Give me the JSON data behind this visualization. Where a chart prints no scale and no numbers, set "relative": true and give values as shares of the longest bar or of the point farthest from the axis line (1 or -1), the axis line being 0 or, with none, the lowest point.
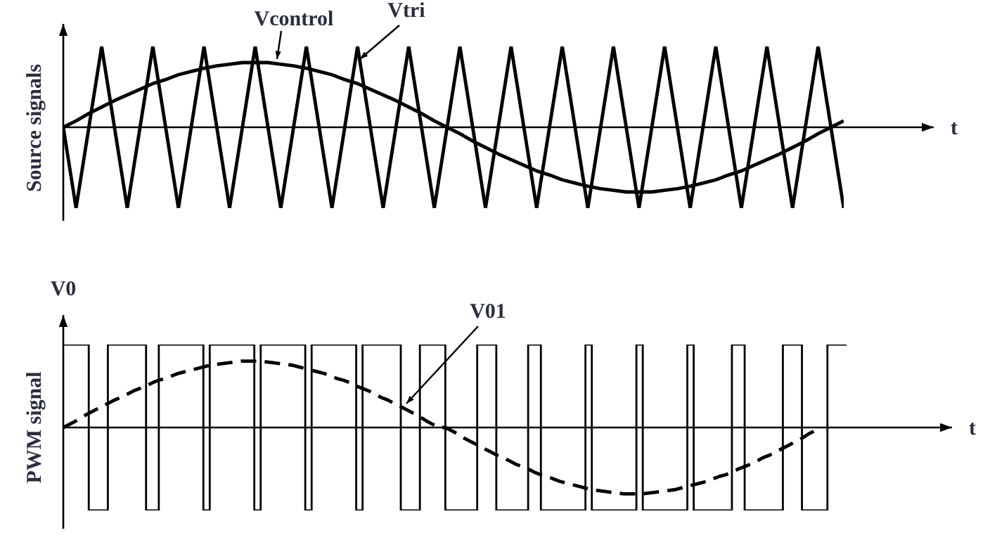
{
  "chart_data": [
    {
      "type": "line",
      "ylabel": "Source signals",
      "xlabel": "t",
      "relative": true,
      "categories": [
        null,
        null,
        null,
        null,
        null,
        null,
        null,
        null,
        null,
        null,
        null,
        null,
        null,
        null,
        null,
        null,
        null,
        null,
        null,
        null,
        null,
        null,
        null,
        null,
        null,
        null,
        null,
        null,
        null,
        null,
        null,
        null,
        null,
        null,
        null,
        null,
        null,
        null,
        null,
        null,
        null,
        null,
        null,
        null,
        null,
        null,
        null,
        null,
        null,
        null,
        null,
        null,
        null,
        null,
        null,
        null,
        null,
        null,
        null,
        null,
        null,
        null
      ],
      "series": [
        {
          "name": "Vtri",
          "color": "#000000",
          "values": [
            0,
            -1,
            0,
            1,
            0,
            -1,
            0,
            1,
            0,
            -1,
            0,
            1,
            0,
            -1,
            0,
            1,
            0,
            -1,
            0,
            1,
            0,
            -1,
            0,
            1,
            0,
            -1,
            0,
            1,
            0,
            -1,
            0,
            1,
            0,
            -1,
            0,
            1,
            0,
            -1,
            0,
            1,
            0,
            -1,
            0,
            1,
            0,
            -1,
            0,
            1,
            0,
            -1,
            0,
            1,
            0,
            -1,
            0,
            1,
            0,
            -1,
            0,
            1,
            0,
            -1
          ]
        },
        {
          "name": "Vcontrol",
          "color": "#000000",
          "values": [
            0,
            0.08,
            0.17,
            0.25,
            0.33,
            0.4,
            0.47,
            0.54,
            0.59,
            0.65,
            0.69,
            0.73,
            0.76,
            0.78,
            0.8,
            0.8,
            0.8,
            0.78,
            0.76,
            0.73,
            0.69,
            0.65,
            0.59,
            0.54,
            0.47,
            0.4,
            0.33,
            0.25,
            0.17,
            0.08,
            0,
            -0.08,
            -0.17,
            -0.25,
            -0.33,
            -0.4,
            -0.47,
            -0.54,
            -0.59,
            -0.65,
            -0.69,
            -0.73,
            -0.76,
            -0.78,
            -0.8,
            -0.8,
            -0.8,
            -0.78,
            -0.76,
            -0.73,
            -0.69,
            -0.65,
            -0.59,
            -0.54,
            -0.47,
            -0.4,
            -0.33,
            -0.25,
            -0.17,
            -0.08,
            0,
            0.08
          ]
        }
      ]
    },
    {
      "type": "line",
      "ylabel": "PWM signal",
      "xlabel": "t",
      "annotations": [
        "V0"
      ],
      "relative": true,
      "categories": [
        null,
        null,
        null,
        null,
        null,
        null,
        null,
        null,
        null,
        null,
        null,
        null,
        null,
        null,
        null,
        null,
        null,
        null,
        null,
        null,
        null,
        null,
        null,
        null,
        null,
        null,
        null,
        null,
        null,
        null,
        null,
        null,
        null,
        null,
        null,
        null,
        null,
        null,
        null,
        null,
        null,
        null,
        null,
        null,
        null,
        null,
        null,
        null,
        null,
        null,
        null,
        null,
        null,
        null,
        null,
        null,
        null,
        null,
        null,
        null,
        null,
        null,
        null,
        null,
        null,
        null,
        null,
        null,
        null,
        null,
        null,
        null,
        null,
        null,
        null,
        null,
        null,
        null,
        null,
        null,
        null,
        null,
        null,
        null,
        null,
        null,
        null,
        null,
        null,
        null,
        null,
        null,
        null,
        null,
        null,
        null,
        null,
        null,
        null,
        null,
        null,
        null,
        null,
        null,
        null,
        null,
        null,
        null,
        null,
        null,
        null,
        null,
        null,
        null,
        null,
        null,
        null,
        null,
        null,
        null,
        null,
        null,
        null,
        null
      ],
      "series": [
        {
          "type": "step",
          "color": "#000000",
          "values": [
            1,
            1,
            1,
            1,
            -1,
            -1,
            -1,
            1,
            1,
            1,
            1,
            1,
            1,
            -1,
            -1,
            1,
            1,
            1,
            1,
            1,
            1,
            1,
            -1,
            1,
            1,
            1,
            1,
            1,
            1,
            1,
            -1,
            1,
            1,
            1,
            1,
            1,
            1,
            1,
            -1,
            1,
            1,
            1,
            1,
            1,
            1,
            1,
            -1,
            1,
            1,
            1,
            1,
            1,
            1,
            -1,
            -1,
            -1,
            1,
            1,
            1,
            1,
            -1,
            -1,
            -1,
            -1,
            -1,
            1,
            1,
            1,
            -1,
            -1,
            -1,
            -1,
            -1,
            1,
            1,
            -1,
            -1,
            -1,
            -1,
            -1,
            -1,
            -1,
            1,
            -1,
            -1,
            -1,
            -1,
            -1,
            -1,
            -1,
            1,
            -1,
            -1,
            -1,
            -1,
            -1,
            -1,
            -1,
            1,
            -1,
            -1,
            -1,
            -1,
            -1,
            -1,
            1,
            1,
            -1,
            -1,
            -1,
            -1,
            -1,
            -1,
            1,
            1,
            1,
            -1,
            -1,
            -1,
            -1,
            1,
            1,
            1,
            1
          ]
        },
        {
          "name": "V01",
          "color": "#000000",
          "line_style": "dashed",
          "values": [
            0,
            0.04,
            0.08,
            0.13,
            0.17,
            0.21,
            0.25,
            0.29,
            0.33,
            0.36,
            0.4,
            0.44,
            0.47,
            0.5,
            0.54,
            0.57,
            0.59,
            0.62,
            0.65,
            0.67,
            0.69,
            0.71,
            0.73,
            0.75,
            0.76,
            0.77,
            0.78,
            0.79,
            0.8,
            0.8,
            0.8,
            0.8,
            0.79,
            0.78,
            0.77,
            0.76,
            0.75,
            0.73,
            0.71,
            0.69,
            0.67,
            0.65,
            0.62,
            0.59,
            0.57,
            0.54,
            0.5,
            0.47,
            0.44,
            0.4,
            0.36,
            0.33,
            0.29,
            0.25,
            0.21,
            0.17,
            0.13,
            0.08,
            0.04,
            0,
            0,
            -0.04,
            -0.08,
            -0.13,
            -0.17,
            -0.21,
            -0.25,
            -0.29,
            -0.33,
            -0.36,
            -0.4,
            -0.44,
            -0.47,
            -0.5,
            -0.54,
            -0.57,
            -0.59,
            -0.62,
            -0.65,
            -0.67,
            -0.69,
            -0.71,
            -0.73,
            -0.75,
            -0.76,
            -0.77,
            -0.78,
            -0.79,
            -0.8,
            -0.8,
            -0.8,
            -0.8,
            -0.79,
            -0.78,
            -0.77,
            -0.76,
            -0.75,
            -0.73,
            -0.71,
            -0.69,
            -0.67,
            -0.65,
            -0.62,
            -0.59,
            -0.57,
            -0.54,
            -0.5,
            -0.47,
            -0.44,
            -0.4,
            -0.36,
            -0.33,
            -0.29,
            -0.25,
            -0.21,
            -0.17,
            -0.13,
            -0.08,
            -0.04,
            0,
            null,
            null,
            null,
            null
          ]
        }
      ]
    }
  ]
}
